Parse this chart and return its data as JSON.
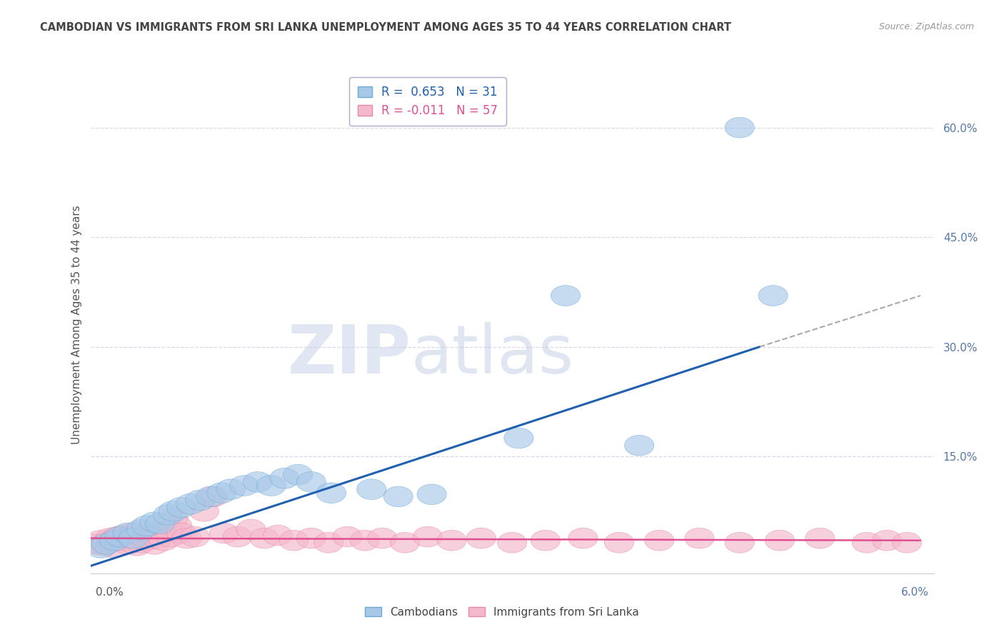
{
  "title": "CAMBODIAN VS IMMIGRANTS FROM SRI LANKA UNEMPLOYMENT AMONG AGES 35 TO 44 YEARS CORRELATION CHART",
  "source": "Source: ZipAtlas.com",
  "ylabel": "Unemployment Among Ages 35 to 44 years",
  "xlim": [
    0.0,
    6.3
  ],
  "ylim": [
    -1.0,
    67.0
  ],
  "ytick_positions": [
    15,
    30,
    45,
    60
  ],
  "ytick_labels": [
    "15.0%",
    "30.0%",
    "45.0%",
    "60.0%"
  ],
  "legend_cambodian": "R =  0.653   N = 31",
  "legend_srilanka": "R = -0.011   N = 57",
  "cambodian_fill": "#a8c8e8",
  "cambodian_edge": "#6aaad4",
  "srilanka_fill": "#f4b8cc",
  "srilanka_edge": "#e888aa",
  "trend_cambodian_color": "#2060b0",
  "trend_srilanka_color": "#e05090",
  "watermark_zip": "ZIP",
  "watermark_atlas": "atlas",
  "grid_color": "#d8d8e8",
  "cambodian_scatter_x": [
    0.08,
    0.12,
    0.18,
    0.22,
    0.28,
    0.32,
    0.38,
    0.42,
    0.48,
    0.52,
    0.58,
    0.62,
    0.68,
    0.75,
    0.82,
    0.9,
    0.98,
    1.05,
    1.15,
    1.25,
    1.35,
    1.45,
    1.55,
    1.65,
    1.8,
    2.1,
    2.3,
    2.55,
    3.2,
    4.1,
    5.1
  ],
  "cambodian_scatter_y": [
    2.5,
    3.0,
    3.5,
    4.0,
    4.5,
    3.8,
    5.0,
    5.5,
    6.0,
    5.8,
    7.0,
    7.5,
    8.0,
    8.5,
    9.0,
    9.5,
    10.0,
    10.5,
    11.0,
    11.5,
    11.0,
    12.0,
    12.5,
    11.5,
    10.0,
    10.5,
    9.5,
    9.8,
    17.5,
    16.5,
    37.0
  ],
  "srilanka_scatter_x": [
    0.05,
    0.08,
    0.1,
    0.12,
    0.15,
    0.18,
    0.2,
    0.22,
    0.25,
    0.28,
    0.3,
    0.32,
    0.35,
    0.38,
    0.4,
    0.42,
    0.45,
    0.48,
    0.5,
    0.52,
    0.55,
    0.58,
    0.6,
    0.62,
    0.65,
    0.68,
    0.72,
    0.78,
    0.85,
    0.92,
    1.0,
    1.1,
    1.2,
    1.3,
    1.4,
    1.52,
    1.65,
    1.78,
    1.92,
    2.05,
    2.18,
    2.35,
    2.52,
    2.7,
    2.92,
    3.15,
    3.4,
    3.68,
    3.95,
    4.25,
    4.55,
    4.85,
    5.15,
    5.45,
    5.8,
    5.95,
    6.1
  ],
  "srilanka_scatter_y": [
    3.0,
    3.5,
    2.8,
    3.2,
    3.8,
    2.5,
    4.0,
    3.5,
    4.2,
    3.0,
    3.8,
    4.5,
    2.8,
    3.2,
    4.0,
    3.5,
    4.5,
    3.0,
    3.8,
    4.2,
    3.5,
    5.0,
    4.0,
    6.5,
    5.5,
    4.5,
    3.8,
    4.0,
    7.5,
    9.5,
    4.5,
    4.0,
    5.0,
    3.8,
    4.2,
    3.5,
    3.8,
    3.2,
    4.0,
    3.5,
    3.8,
    3.2,
    4.0,
    3.5,
    3.8,
    3.2,
    3.5,
    3.8,
    3.2,
    3.5,
    3.8,
    3.2,
    3.5,
    3.8,
    3.2,
    3.5,
    3.2
  ],
  "cam_trend_x0": 0.0,
  "cam_trend_y0": 0.0,
  "cam_trend_x1": 5.0,
  "cam_trend_y1": 30.0,
  "cam_trend_dash_x1": 6.2,
  "cam_trend_dash_y1": 37.0,
  "sri_trend_x0": 0.0,
  "sri_trend_y0": 3.8,
  "sri_trend_x1": 6.2,
  "sri_trend_y1": 3.5,
  "cam_outlier1_x": 3.55,
  "cam_outlier1_y": 37.0,
  "cam_outlier2_x": 4.85,
  "cam_outlier2_y": 60.0
}
